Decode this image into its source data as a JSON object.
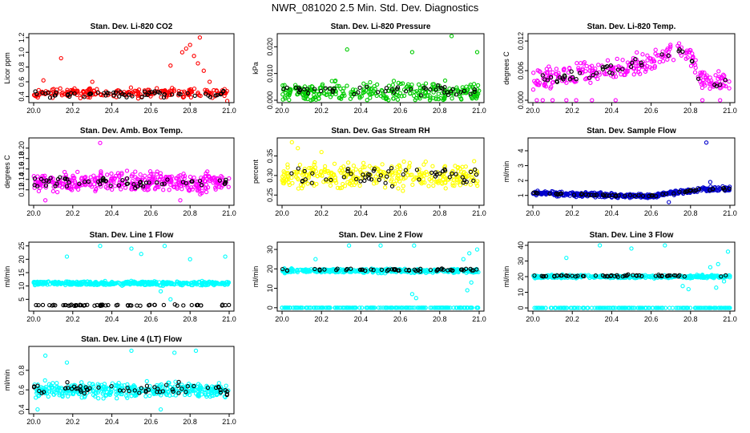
{
  "figure": {
    "title": "NWR_081020  2.5 Min. Std. Dev. Diagnostics"
  },
  "colors": {
    "red": "#ff0000",
    "green": "#00cc00",
    "magenta": "#ff00ff",
    "yellow": "#ffff00",
    "blue": "#0000cc",
    "cyan": "#00ffff",
    "black": "#000000"
  },
  "chart_data": [
    {
      "type": "scatter",
      "title": "Stan. Dev. Li-820 CO2",
      "ylabel": "Licor ppm",
      "xlim": [
        20.0,
        21.0
      ],
      "ylim": [
        0.35,
        1.22
      ],
      "xticks": [
        "20.0",
        "20.2",
        "20.4",
        "20.6",
        "20.8",
        "21.0"
      ],
      "yticks": [
        "0.4",
        "0.6",
        "0.8",
        "1.0",
        "1.2"
      ],
      "series": [
        {
          "name": "all",
          "color": "red",
          "n": 220,
          "base": 0.45,
          "spread": 0.05,
          "floor": 0.35,
          "outliers": [
            [
              20.14,
              0.92
            ],
            [
              20.05,
              0.62
            ],
            [
              20.3,
              0.6
            ],
            [
              20.7,
              0.82
            ],
            [
              20.76,
              1.0
            ],
            [
              20.78,
              1.05
            ],
            [
              20.8,
              1.1
            ],
            [
              20.82,
              0.95
            ],
            [
              20.84,
              0.85
            ],
            [
              20.85,
              1.2
            ],
            [
              20.87,
              0.75
            ],
            [
              20.9,
              0.6
            ],
            [
              20.99,
              0.34
            ]
          ]
        },
        {
          "name": "avg",
          "color": "black",
          "n": 60,
          "base": 0.43,
          "spread": 0.04
        }
      ]
    },
    {
      "type": "scatter",
      "title": "Stan. Dev. Li-820 Pressure",
      "ylabel": "kPa",
      "xlim": [
        20.0,
        21.0
      ],
      "ylim": [
        0,
        0.024
      ],
      "xticks": [
        "20.0",
        "20.2",
        "20.4",
        "20.6",
        "20.8",
        "21.0"
      ],
      "yticks": [
        "0.000",
        "0.010",
        "0.020"
      ],
      "series": [
        {
          "name": "all",
          "color": "green",
          "n": 300,
          "base": 0.003,
          "spread": 0.003,
          "floor": 0,
          "outliers": [
            [
              20.33,
              0.019
            ],
            [
              20.66,
              0.018
            ],
            [
              20.86,
              0.024
            ],
            [
              20.99,
              0.018
            ]
          ]
        },
        {
          "name": "avg",
          "color": "black",
          "n": 50,
          "base": 0.0035,
          "spread": 0.0015
        }
      ]
    },
    {
      "type": "scatter",
      "title": "Stan. Dev. Li-820 Temp.",
      "ylabel": "degrees C",
      "xlim": [
        20.0,
        21.0
      ],
      "ylim": [
        0,
        0.013
      ],
      "xticks": [
        "20.0",
        "20.2",
        "20.4",
        "20.6",
        "20.8",
        "21.0"
      ],
      "yticks": [
        "0.000",
        "0.006",
        "0.012"
      ],
      "trend": [
        [
          20.0,
          0.004
        ],
        [
          20.3,
          0.0055
        ],
        [
          20.55,
          0.007
        ],
        [
          20.72,
          0.0105
        ],
        [
          20.8,
          0.009
        ],
        [
          20.85,
          0.004
        ],
        [
          21.0,
          0.0035
        ]
      ],
      "series": [
        {
          "name": "all",
          "color": "magenta",
          "n": 280,
          "base": 0,
          "spread": 0.0018,
          "floor": 0,
          "outliers": [
            [
              20.02,
              0.0
            ],
            [
              20.05,
              0.0
            ],
            [
              20.1,
              0.0
            ],
            [
              20.17,
              0.0
            ],
            [
              20.22,
              0.0
            ],
            [
              20.3,
              0.0
            ],
            [
              20.42,
              0.0
            ],
            [
              20.86,
              0.0
            ],
            [
              20.95,
              0.0
            ]
          ]
        },
        {
          "name": "avg",
          "color": "black",
          "n": 45,
          "base": 0,
          "spread": 0.001
        }
      ]
    },
    {
      "type": "scatter",
      "title": "Stan. Dev. Amb. Box Temp.",
      "ylabel": "degrees C",
      "xlim": [
        20.0,
        21.0
      ],
      "ylim": [
        0.095,
        0.215
      ],
      "xticks": [
        "20.0",
        "20.2",
        "20.4",
        "20.6",
        "20.8",
        "21.0"
      ],
      "yticks": [
        "0.12",
        "0.14",
        "0.16",
        "0.18",
        "0.20"
      ],
      "series": [
        {
          "name": "all",
          "color": "magenta",
          "n": 380,
          "base": 0.135,
          "spread": 0.015,
          "outliers": [
            [
              20.34,
              0.21
            ],
            [
              20.06,
              0.1
            ],
            [
              20.75,
              0.1
            ]
          ]
        },
        {
          "name": "avg",
          "color": "black",
          "n": 60,
          "base": 0.135,
          "spread": 0.01
        }
      ]
    },
    {
      "type": "scatter",
      "title": "Stan. Dev. Gas Stream RH",
      "ylabel": "percent",
      "xlim": [
        20.0,
        21.0
      ],
      "ylim": [
        0.23,
        0.39
      ],
      "xticks": [
        "20.0",
        "20.2",
        "20.4",
        "20.6",
        "20.8",
        "21.0"
      ],
      "yticks": [
        "0.25",
        "0.30",
        "0.35"
      ],
      "series": [
        {
          "name": "all",
          "color": "yellow",
          "n": 330,
          "base": 0.3,
          "spread": 0.025,
          "outliers": [
            [
              20.05,
              0.385
            ],
            [
              20.08,
              0.37
            ],
            [
              20.2,
              0.36
            ]
          ]
        },
        {
          "name": "avg",
          "color": "black",
          "n": 55,
          "base": 0.3,
          "spread": 0.02
        }
      ]
    },
    {
      "type": "scatter",
      "title": "Stan. Dev. Sample Flow",
      "ylabel": "ml/min",
      "xlim": [
        20.0,
        21.0
      ],
      "ylim": [
        0.5,
        4.7
      ],
      "xticks": [
        "20.0",
        "20.2",
        "20.4",
        "20.6",
        "20.8",
        "21.0"
      ],
      "yticks": [
        "1",
        "2",
        "3",
        "4"
      ],
      "trend": [
        [
          20.0,
          1.15
        ],
        [
          20.4,
          1.0
        ],
        [
          20.6,
          0.95
        ],
        [
          20.7,
          1.15
        ],
        [
          20.85,
          1.4
        ],
        [
          21.0,
          1.45
        ]
      ],
      "series": [
        {
          "name": "all",
          "color": "blue",
          "n": 400,
          "base": 0,
          "spread": 0.12,
          "outliers": [
            [
              20.88,
              4.55
            ],
            [
              20.69,
              0.55
            ],
            [
              20.9,
              1.9
            ]
          ]
        },
        {
          "name": "avg",
          "color": "black",
          "n": 55,
          "base": 0,
          "spread": 0.06
        }
      ]
    },
    {
      "type": "scatter",
      "title": "Stan. Dev. Line 1 Flow",
      "ylabel": "ml/min",
      "xlim": [
        20.0,
        21.0
      ],
      "ylim": [
        1.5,
        25.5
      ],
      "xticks": [
        "20.0",
        "20.2",
        "20.4",
        "20.6",
        "20.8",
        "21.0"
      ],
      "yticks": [
        "5",
        "10",
        "15",
        "20",
        "25"
      ],
      "series": [
        {
          "name": "all",
          "color": "cyan",
          "n": 420,
          "base": 11,
          "spread": 0.6,
          "outliers": [
            [
              20.17,
              21
            ],
            [
              20.34,
              25
            ],
            [
              20.5,
              24
            ],
            [
              20.55,
              22
            ],
            [
              20.67,
              25
            ],
            [
              20.8,
              20
            ],
            [
              20.98,
              21
            ],
            [
              20.65,
              8
            ],
            [
              20.7,
              5
            ]
          ]
        },
        {
          "name": "avg",
          "color": "black",
          "n": 60,
          "base": 2.8,
          "spread": 0.2
        }
      ]
    },
    {
      "type": "scatter",
      "title": "Stan. Dev. Line 2 Flow",
      "ylabel": "ml/min",
      "xlim": [
        20.0,
        21.0
      ],
      "ylim": [
        -0.5,
        32.5
      ],
      "xticks": [
        "20.0",
        "20.2",
        "20.4",
        "20.6",
        "20.8",
        "21.0"
      ],
      "yticks": [
        "0",
        "10",
        "20",
        "30"
      ],
      "series": [
        {
          "name": "all",
          "color": "cyan",
          "n": 420,
          "base": 19,
          "spread": 0.8,
          "outliers": [
            [
              20.17,
              25
            ],
            [
              20.34,
              32
            ],
            [
              20.5,
              32
            ],
            [
              20.67,
              32
            ],
            [
              20.92,
              25
            ],
            [
              20.95,
              28
            ],
            [
              20.99,
              30
            ],
            [
              20.66,
              7
            ],
            [
              20.68,
              5
            ],
            [
              20.94,
              9
            ],
            [
              20.96,
              13
            ]
          ]
        },
        {
          "name": "avg",
          "color": "black",
          "n": 55,
          "base": 19.5,
          "spread": 0.5
        },
        {
          "name": "zero",
          "color": "cyan",
          "n": 200,
          "base": 0,
          "spread": 0
        }
      ]
    },
    {
      "type": "scatter",
      "title": "Stan. Dev. Line 3 Flow",
      "ylabel": "ml/min",
      "xlim": [
        20.0,
        21.0
      ],
      "ylim": [
        -0.5,
        40.5
      ],
      "xticks": [
        "20.0",
        "20.2",
        "20.4",
        "20.6",
        "20.8",
        "21.0"
      ],
      "yticks": [
        "0",
        "10",
        "20",
        "30",
        "40"
      ],
      "series": [
        {
          "name": "all",
          "color": "cyan",
          "n": 420,
          "base": 20,
          "spread": 0.8,
          "outliers": [
            [
              20.17,
              32
            ],
            [
              20.34,
              40
            ],
            [
              20.5,
              38
            ],
            [
              20.67,
              40
            ],
            [
              20.9,
              26
            ],
            [
              20.94,
              28
            ],
            [
              20.99,
              36
            ],
            [
              20.76,
              14
            ],
            [
              20.79,
              12
            ],
            [
              20.93,
              13
            ],
            [
              20.97,
              17
            ]
          ]
        },
        {
          "name": "avg",
          "color": "black",
          "n": 55,
          "base": 20.5,
          "spread": 0.5
        },
        {
          "name": "zero",
          "color": "cyan",
          "n": 200,
          "base": 0,
          "spread": 0
        }
      ]
    },
    {
      "type": "scatter",
      "title": "Stan. Dev. Line 4 (LT) Flow",
      "ylabel": "ml/min",
      "xlim": [
        20.0,
        21.0
      ],
      "ylim": [
        0.38,
        1.02
      ],
      "xticks": [
        "20.0",
        "20.2",
        "20.4",
        "20.6",
        "20.8",
        "21.0"
      ],
      "yticks": [
        "0.4",
        "0.6",
        "0.8"
      ],
      "series": [
        {
          "name": "all",
          "color": "cyan",
          "n": 400,
          "base": 0.6,
          "spread": 0.06,
          "outliers": [
            [
              20.06,
              0.95
            ],
            [
              20.17,
              0.88
            ],
            [
              20.5,
              1.0
            ],
            [
              20.72,
              0.98
            ],
            [
              20.83,
              1.0
            ],
            [
              20.02,
              0.4
            ],
            [
              20.65,
              0.4
            ]
          ]
        },
        {
          "name": "avg",
          "color": "black",
          "n": 60,
          "base": 0.6,
          "spread": 0.05
        }
      ]
    }
  ]
}
